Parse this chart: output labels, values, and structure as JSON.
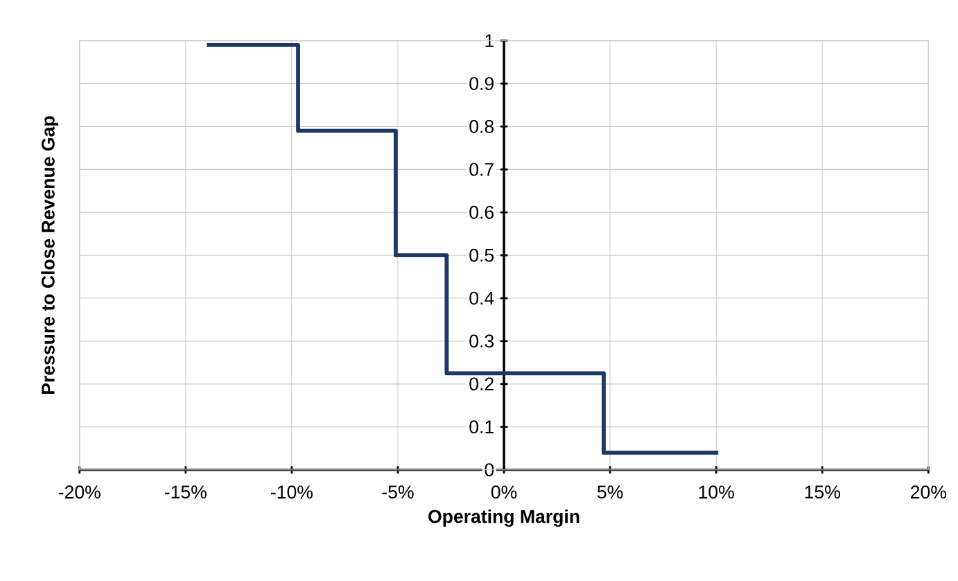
{
  "chart_data": {
    "type": "step",
    "xlabel": "Operating Margin",
    "ylabel": "Pressure to Close Revenue Gap",
    "x": [
      -14,
      -9.7,
      -5.1,
      -2.7,
      4.7,
      10.1
    ],
    "series": [
      {
        "color": "#1f3864",
        "values": [
          0.99,
          0.79,
          0.5,
          0.225,
          0.04,
          0.04
        ]
      }
    ],
    "xlim": [
      -20,
      20
    ],
    "xticks": [
      {
        "value": -20,
        "label": "-20%"
      },
      {
        "value": -15,
        "label": "-15%"
      },
      {
        "value": -10,
        "label": "-10%"
      },
      {
        "value": -5,
        "label": "-5%"
      },
      {
        "value": 0,
        "label": "0%"
      },
      {
        "value": 5,
        "label": "5%"
      },
      {
        "value": 10,
        "label": "10%"
      },
      {
        "value": 15,
        "label": "15%"
      },
      {
        "value": 20,
        "label": "20%"
      }
    ],
    "ylim": [
      0,
      1
    ],
    "yticks": [
      0,
      0.1,
      0.2,
      0.3,
      0.4,
      0.5,
      0.6,
      0.7,
      0.8,
      0.9,
      1
    ],
    "grid": true
  }
}
